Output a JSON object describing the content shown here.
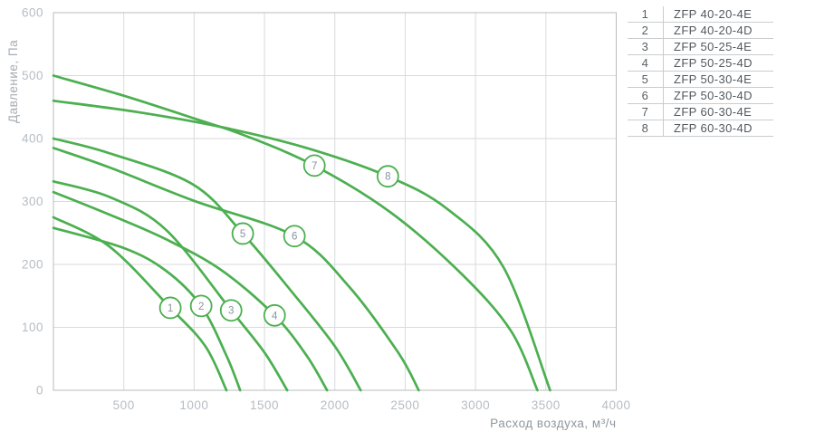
{
  "chart_data": {
    "type": "line",
    "title": "",
    "xlabel": "Расход воздуха, м³/ч",
    "ylabel": "Давление, Па",
    "xlim": [
      0,
      4000
    ],
    "ylim": [
      0,
      600
    ],
    "xticks": [
      500,
      1000,
      1500,
      2000,
      2500,
      3000,
      3500,
      4000
    ],
    "yticks": [
      0,
      100,
      200,
      300,
      400,
      500,
      600
    ],
    "grid": true,
    "legend_position": "top-right-table",
    "line_color": "#4caf50",
    "series": [
      {
        "id": "1",
        "name": "ZFP 40-20-4E",
        "points": [
          [
            0,
            275
          ],
          [
            400,
            228
          ],
          [
            831,
            131
          ],
          [
            1080,
            70
          ],
          [
            1230,
            0
          ]
        ],
        "marker_at": [
          831,
          131
        ]
      },
      {
        "id": "2",
        "name": "ZFP 40-20-4D",
        "points": [
          [
            0,
            258
          ],
          [
            500,
            226
          ],
          [
            800,
            190
          ],
          [
            1050,
            134
          ],
          [
            1230,
            55
          ],
          [
            1327,
            0
          ]
        ],
        "marker_at": [
          1050,
          134
        ]
      },
      {
        "id": "3",
        "name": "ZFP 50-25-4E",
        "points": [
          [
            0,
            332
          ],
          [
            400,
            307
          ],
          [
            800,
            255
          ],
          [
            1263,
            127
          ],
          [
            1500,
            60
          ],
          [
            1662,
            0
          ]
        ],
        "marker_at": [
          1263,
          127
        ]
      },
      {
        "id": "4",
        "name": "ZFP 50-25-4D",
        "points": [
          [
            0,
            315
          ],
          [
            400,
            279
          ],
          [
            800,
            240
          ],
          [
            1200,
            190
          ],
          [
            1572,
            119
          ],
          [
            1800,
            55
          ],
          [
            1945,
            0
          ]
        ],
        "marker_at": [
          1572,
          119
        ]
      },
      {
        "id": "5",
        "name": "ZFP 50-30-4E",
        "points": [
          [
            0,
            400
          ],
          [
            393,
            377
          ],
          [
            992,
            327
          ],
          [
            1346,
            249
          ],
          [
            1700,
            155
          ],
          [
            2000,
            70
          ],
          [
            2184,
            0
          ]
        ],
        "marker_at": [
          1346,
          249
        ]
      },
      {
        "id": "6",
        "name": "ZFP 50-30-4D",
        "points": [
          [
            0,
            385
          ],
          [
            400,
            354
          ],
          [
            1000,
            301
          ],
          [
            1713,
            245
          ],
          [
            2100,
            165
          ],
          [
            2450,
            60
          ],
          [
            2596,
            0
          ]
        ],
        "marker_at": [
          1713,
          245
        ]
      },
      {
        "id": "7",
        "name": "ZFP 60-30-4E",
        "points": [
          [
            0,
            500
          ],
          [
            500,
            468
          ],
          [
            1000,
            432
          ],
          [
            1370,
            404
          ],
          [
            1855,
            357
          ],
          [
            2400,
            282
          ],
          [
            2900,
            185
          ],
          [
            3250,
            95
          ],
          [
            3440,
            0
          ]
        ],
        "marker_at": [
          1855,
          357
        ]
      },
      {
        "id": "8",
        "name": "ZFP 60-30-4D",
        "points": [
          [
            0,
            460
          ],
          [
            600,
            442
          ],
          [
            1200,
            418
          ],
          [
            1800,
            385
          ],
          [
            2377,
            340
          ],
          [
            2800,
            288
          ],
          [
            3200,
            195
          ],
          [
            3530,
            0
          ]
        ],
        "marker_at": [
          2377,
          340
        ]
      }
    ]
  },
  "legend": {
    "rows": [
      {
        "num": "1",
        "label": "ZFP 40-20-4E"
      },
      {
        "num": "2",
        "label": "ZFP 40-20-4D"
      },
      {
        "num": "3",
        "label": "ZFP 50-25-4E"
      },
      {
        "num": "4",
        "label": "ZFP 50-25-4D"
      },
      {
        "num": "5",
        "label": "ZFP 50-30-4E"
      },
      {
        "num": "6",
        "label": "ZFP 50-30-4D"
      },
      {
        "num": "7",
        "label": "ZFP 60-30-4E"
      },
      {
        "num": "8",
        "label": "ZFP 60-30-4D"
      }
    ]
  },
  "colors": {
    "curve": "#4caf50",
    "grid": "#d8dadc",
    "plot_border": "#b9bcbe",
    "tick_label": "#b6bdc3",
    "y_axis_title": "#a6adb4",
    "x_axis_title": "#8f979e",
    "marker_number": "#8a93a0",
    "legend_text": "#53585d",
    "legend_line": "#c9cccf"
  }
}
